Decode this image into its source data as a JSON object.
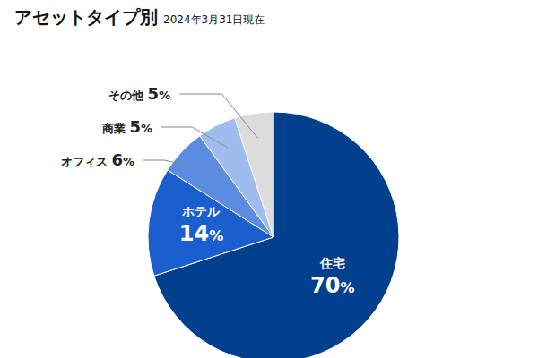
{
  "chart_data": {
    "type": "pie",
    "title": "アセットタイプ別",
    "subtitle": "2024年3月31日現在",
    "categories": [
      "住宅",
      "ホテル",
      "オフィス",
      "商業",
      "その他"
    ],
    "values": [
      70,
      14,
      6,
      5,
      5
    ],
    "value_labels": [
      "70%",
      "14%",
      "6%",
      "5%",
      "5%"
    ],
    "colors": [
      "#02408e",
      "#1a5ed0",
      "#5b8ce0",
      "#9ebdee",
      "#dcdcdc"
    ],
    "data_labels": true
  }
}
